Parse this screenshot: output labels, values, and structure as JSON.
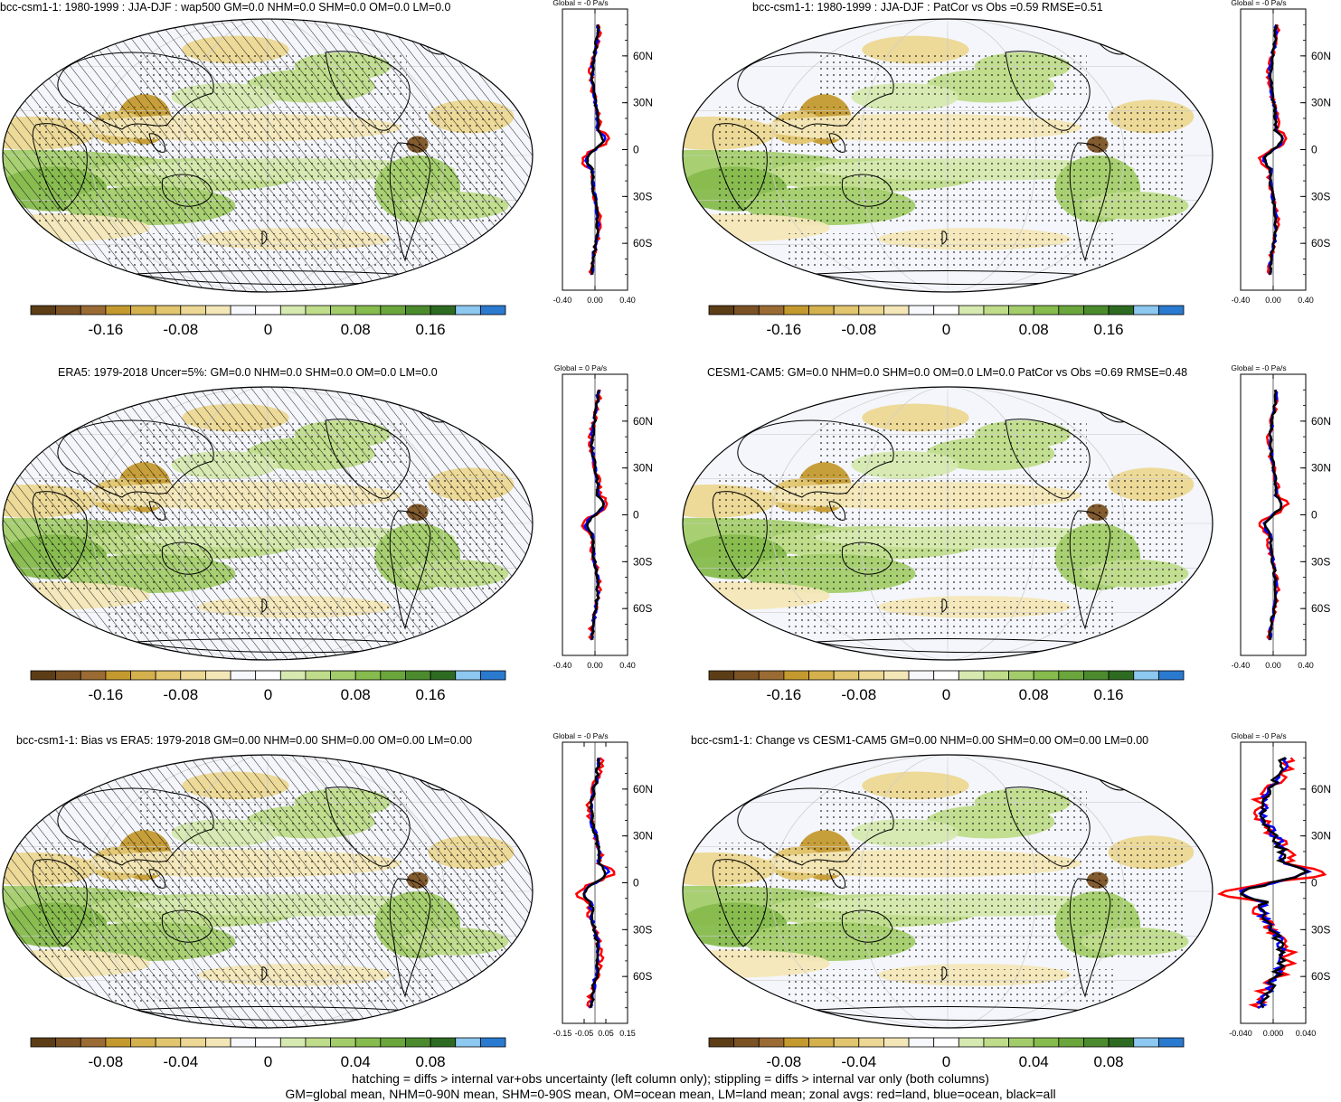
{
  "colorbar_colors": [
    "#5c3d16",
    "#7b5224",
    "#9b6b34",
    "#c49a2f",
    "#d5b14e",
    "#e2c56f",
    "#ecd894",
    "#f3e7b8",
    "#f6f8fc",
    "#ffffff",
    "#d6e9b0",
    "#bfdc8a",
    "#a3cd6a",
    "#86bb4d",
    "#6aa63c",
    "#4b8b2d",
    "#2e6b22",
    "#8cc8ef",
    "#2a7ad0"
  ],
  "line_colors": {
    "land": "#ff0000",
    "ocean": "#0000ff",
    "all": "#000000"
  },
  "panels": [
    {
      "title": "bcc-csm1-1: 1980-1999 : JJA-DJF : wap500 GM=0.0 NHM=0.0 SHM=0.0 OM=0.0 LM=0.0",
      "zonal_title": "Global = -0 Pa/s",
      "cbar_labels": [
        "-0.16",
        "-0.08",
        "0",
        "0.08",
        "0.16"
      ],
      "z_ticks": [
        "-0.40",
        "0.00",
        "0.40"
      ],
      "lat_labels": [
        "60N",
        "30N",
        "0",
        "30S",
        "60S"
      ],
      "hatch": true
    },
    {
      "title": "bcc-csm1-1: 1980-1999 : JJA-DJF : PatCor vs Obs =0.59 RMSE=0.51",
      "zonal_title": "Global = -0 Pa/s",
      "cbar_labels": [
        "-0.16",
        "-0.08",
        "0",
        "0.08",
        "0.16"
      ],
      "z_ticks": [
        "-0.40",
        "0.00",
        "0.40"
      ],
      "lat_labels": [
        "60N",
        "30N",
        "0",
        "30S",
        "60S"
      ],
      "hatch": false
    },
    {
      "title": "ERA5: 1979-2018 Uncer=5%: GM=0.0 NHM=0.0 SHM=0.0 OM=0.0 LM=0.0",
      "zonal_title": "Global = 0 Pa/s",
      "cbar_labels": [
        "-0.16",
        "-0.08",
        "0",
        "0.08",
        "0.16"
      ],
      "z_ticks": [
        "-0.40",
        "0.00",
        "0.40"
      ],
      "lat_labels": [
        "60N",
        "30N",
        "0",
        "30S",
        "60S"
      ],
      "hatch": true
    },
    {
      "title": "CESM1-CAM5: GM=0.0 NHM=0.0 SHM=0.0 OM=0.0 LM=0.0 PatCor vs Obs =0.69 RMSE=0.48",
      "zonal_title": "Global = -0 Pa/s",
      "cbar_labels": [
        "-0.16",
        "-0.08",
        "0",
        "0.08",
        "0.16"
      ],
      "z_ticks": [
        "-0.40",
        "0.00",
        "0.40"
      ],
      "lat_labels": [
        "60N",
        "30N",
        "0",
        "30S",
        "60S"
      ],
      "hatch": false
    },
    {
      "title": "bcc-csm1-1: Bias vs ERA5: 1979-2018 GM=0.00 NHM=0.00 SHM=0.00 OM=0.00 LM=0.00",
      "zonal_title": "Global = -0 Pa/s",
      "cbar_labels": [
        "-0.08",
        "-0.04",
        "0",
        "0.04",
        "0.08"
      ],
      "z_ticks": [
        "-0.15",
        "-0.05",
        "0.05",
        "0.15"
      ],
      "lat_labels": [
        "60N",
        "30N",
        "0",
        "30S",
        "60S"
      ],
      "hatch": true
    },
    {
      "title": "bcc-csm1-1: Change vs CESM1-CAM5 GM=0.00 NHM=0.00 SHM=0.00 OM=0.00 LM=0.00",
      "zonal_title": "Global = -0 Pa/s",
      "cbar_labels": [
        "-0.08",
        "-0.04",
        "0",
        "0.04",
        "0.08"
      ],
      "z_ticks": [
        "-0.040",
        "0.000",
        "0.040"
      ],
      "lat_labels": [
        "60N",
        "30N",
        "0",
        "30S",
        "60S"
      ],
      "hatch": false
    }
  ],
  "footer": {
    "line1": "hatching = diffs > internal var+obs uncertainty (left column only); stippling = diffs > internal var only (both columns)",
    "line2": "GM=global mean, NHM=0-90N mean, SHM=0-90S mean, OM=ocean mean, LM=land mean; zonal avgs: red=land, blue=ocean, black=all"
  }
}
